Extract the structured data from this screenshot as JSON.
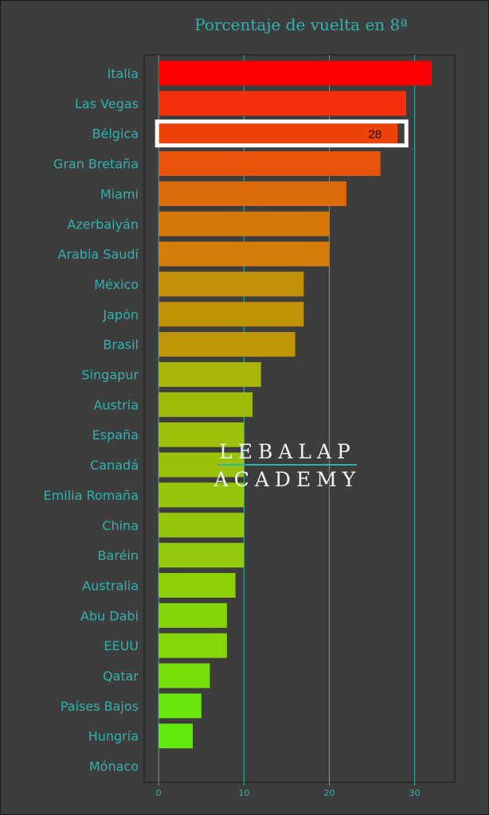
{
  "chart_data": {
    "type": "bar",
    "orientation": "horizontal",
    "title": "Porcentaje de vuelta en 8ª",
    "xlabel": "",
    "ylabel": "",
    "xlim": [
      -1.7,
      34.7
    ],
    "xticks": [
      0,
      10,
      20,
      30
    ],
    "grid": true,
    "legend": "none",
    "categories": [
      "Italia",
      "Las Vegas",
      "Bélgica",
      "Gran Bretaña",
      "Miami",
      "Azerbaiyán",
      "Arabia Saudí",
      "México",
      "Japón",
      "Brasil",
      "Singapur",
      "Austria",
      "España",
      "Canadá",
      "Emilia Romaña",
      "China",
      "Baréin",
      "Australia",
      "Abu Dabi",
      "EEUU",
      "Qatar",
      "Países Bajos",
      "Hungría",
      "Mónaco"
    ],
    "values": [
      32,
      29,
      28,
      26,
      22,
      20,
      20,
      17,
      17,
      16,
      12,
      11,
      10,
      10,
      10,
      10,
      10,
      9,
      8,
      8,
      6,
      5,
      4,
      0
    ],
    "highlight": {
      "category": "Bélgica",
      "label": "28"
    },
    "colors": [
      "#ff0000",
      "#f5300b",
      "#ee4208",
      "#e9530c",
      "#db6a0b",
      "#d47908",
      "#d37d08",
      "#c49007",
      "#c29206",
      "#bf9608",
      "#a8b505",
      "#a0bb06",
      "#9dc008",
      "#9ac109",
      "#96c50a",
      "#95c60b",
      "#94c80b",
      "#8ecf07",
      "#86d507",
      "#86d608",
      "#76df09",
      "#69e60b",
      "#63ea0d",
      "#5ced10"
    ]
  },
  "colors": {
    "background": "#3d3d3d",
    "accent": "#2fb3b0",
    "watermark_text": "#f2f2f2"
  },
  "watermark": {
    "line1": "LEBALAP",
    "line2": "ACADEMY"
  }
}
